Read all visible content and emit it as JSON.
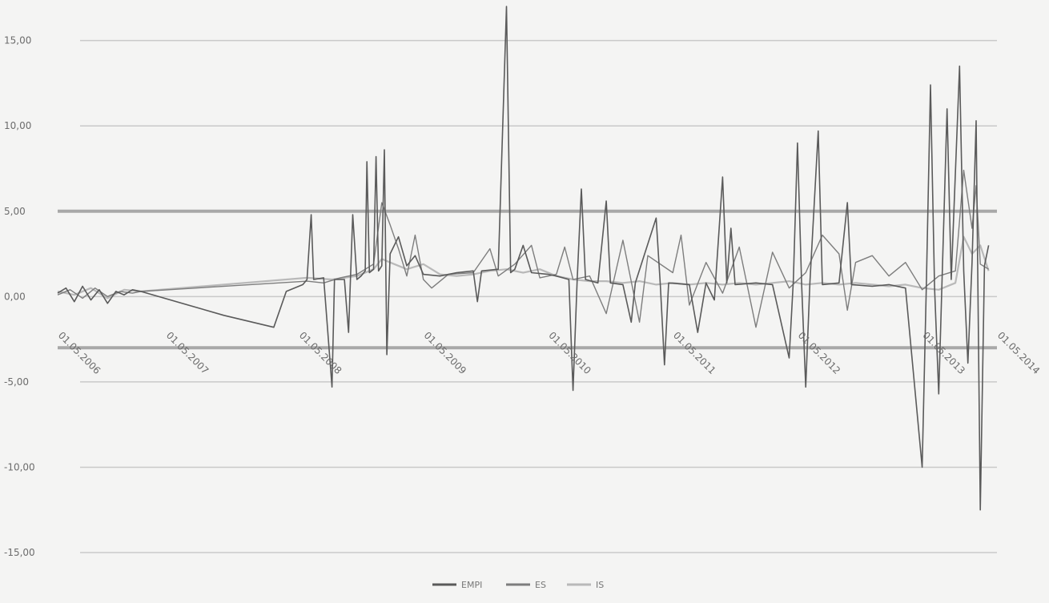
{
  "chart_data": {
    "type": "line",
    "title": "",
    "xlabel": "",
    "ylabel": "",
    "ylim": [
      -15,
      17
    ],
    "yticks": [
      15,
      10,
      5,
      0,
      -5,
      -10,
      -15
    ],
    "ytick_labels": [
      "15,00",
      "10,00",
      "5,00",
      "0,00",
      "-5,00",
      "-10,00",
      "-15,00"
    ],
    "xtick_labels": [
      "01.05.2006",
      "01.05.2007",
      "01.05.2008",
      "01.05.2009",
      "01.05.2010",
      "01.05.2011",
      "01.05.2012",
      "01.05.2013",
      "01.05.2014"
    ],
    "reference_lines": [
      5.0,
      -3.0
    ],
    "legend_position": "bottom",
    "grid": true,
    "colors": {
      "EMPI": "#5a5a5a",
      "ES": "#7d7d7d",
      "IS": "#b9b9b9",
      "reference": "#a8a8a8",
      "grid": "#c9c9c9"
    },
    "series": [
      {
        "name": "EMPI",
        "points": [
          [
            0,
            0.2
          ],
          [
            0.1,
            0.5
          ],
          [
            0.2,
            -0.3
          ],
          [
            0.3,
            0.6
          ],
          [
            0.4,
            -0.2
          ],
          [
            0.5,
            0.4
          ],
          [
            0.6,
            -0.4
          ],
          [
            0.7,
            0.3
          ],
          [
            0.8,
            0.1
          ],
          [
            0.9,
            0.4
          ],
          [
            1.0,
            0.3
          ],
          [
            2.0,
            -1.1
          ],
          [
            2.6,
            -1.8
          ],
          [
            2.75,
            0.3
          ],
          [
            2.95,
            0.7
          ],
          [
            3.0,
            1.0
          ],
          [
            3.05,
            4.8
          ],
          [
            3.08,
            1.0
          ],
          [
            3.2,
            1.1
          ],
          [
            3.3,
            -5.3
          ],
          [
            3.33,
            1.0
          ],
          [
            3.45,
            1.0
          ],
          [
            3.5,
            -2.1
          ],
          [
            3.55,
            4.8
          ],
          [
            3.6,
            1.0
          ],
          [
            3.65,
            1.2
          ],
          [
            3.7,
            1.5
          ],
          [
            3.72,
            7.9
          ],
          [
            3.75,
            1.4
          ],
          [
            3.8,
            1.6
          ],
          [
            3.83,
            8.2
          ],
          [
            3.86,
            1.5
          ],
          [
            3.9,
            1.8
          ],
          [
            3.93,
            8.6
          ],
          [
            3.96,
            -3.4
          ],
          [
            4.0,
            2.5
          ],
          [
            4.1,
            3.5
          ],
          [
            4.2,
            1.8
          ],
          [
            4.3,
            2.4
          ],
          [
            4.4,
            1.3
          ],
          [
            4.6,
            1.2
          ],
          [
            4.8,
            1.4
          ],
          [
            5.0,
            1.5
          ],
          [
            5.05,
            -0.3
          ],
          [
            5.1,
            1.5
          ],
          [
            5.3,
            1.6
          ],
          [
            5.4,
            17.0
          ],
          [
            5.45,
            1.4
          ],
          [
            5.5,
            1.6
          ],
          [
            5.6,
            3.0
          ],
          [
            5.7,
            1.4
          ],
          [
            5.9,
            1.3
          ],
          [
            6.0,
            1.2
          ],
          [
            6.15,
            1.0
          ],
          [
            6.2,
            -5.5
          ],
          [
            6.25,
            1.0
          ],
          [
            6.3,
            6.3
          ],
          [
            6.35,
            1.0
          ],
          [
            6.5,
            0.8
          ],
          [
            6.6,
            5.6
          ],
          [
            6.65,
            0.8
          ],
          [
            6.8,
            0.7
          ],
          [
            6.9,
            -1.5
          ],
          [
            6.95,
            0.8
          ],
          [
            7.2,
            4.6
          ],
          [
            7.25,
            0.7
          ],
          [
            7.3,
            -4.0
          ],
          [
            7.35,
            0.8
          ],
          [
            7.6,
            0.7
          ],
          [
            7.7,
            -2.1
          ],
          [
            7.8,
            0.8
          ],
          [
            7.9,
            -0.2
          ],
          [
            8.0,
            7.0
          ],
          [
            8.05,
            0.8
          ],
          [
            8.1,
            4.0
          ],
          [
            8.15,
            0.7
          ],
          [
            8.4,
            0.8
          ],
          [
            8.6,
            0.7
          ],
          [
            8.8,
            -3.6
          ],
          [
            8.85,
            0.9
          ],
          [
            8.9,
            9.0
          ],
          [
            8.95,
            0.7
          ],
          [
            9.0,
            -5.3
          ],
          [
            9.05,
            0.8
          ],
          [
            9.15,
            9.7
          ],
          [
            9.2,
            0.7
          ],
          [
            9.4,
            0.8
          ],
          [
            9.5,
            5.5
          ],
          [
            9.55,
            0.7
          ],
          [
            9.8,
            0.6
          ],
          [
            10.0,
            0.7
          ],
          [
            10.2,
            0.5
          ],
          [
            10.4,
            -10.0
          ],
          [
            10.45,
            0.6
          ],
          [
            10.5,
            12.4
          ],
          [
            10.55,
            0.5
          ],
          [
            10.6,
            -5.7
          ],
          [
            10.7,
            11.0
          ],
          [
            10.75,
            1.0
          ],
          [
            10.85,
            13.5
          ],
          [
            10.9,
            1.5
          ],
          [
            10.95,
            -3.9
          ],
          [
            11.0,
            2.0
          ],
          [
            11.05,
            10.3
          ],
          [
            11.1,
            -12.5
          ],
          [
            11.15,
            1.8
          ],
          [
            11.2,
            3.0
          ]
        ]
      },
      {
        "name": "ES",
        "points": [
          [
            0,
            0.1
          ],
          [
            0.15,
            0.4
          ],
          [
            0.3,
            -0.1
          ],
          [
            0.45,
            0.5
          ],
          [
            0.6,
            0.0
          ],
          [
            0.75,
            0.3
          ],
          [
            0.9,
            0.2
          ],
          [
            1.0,
            0.3
          ],
          [
            3.0,
            0.9
          ],
          [
            3.2,
            0.8
          ],
          [
            3.4,
            1.1
          ],
          [
            3.6,
            1.3
          ],
          [
            3.8,
            1.9
          ],
          [
            3.9,
            5.5
          ],
          [
            4.0,
            4.2
          ],
          [
            4.1,
            2.8
          ],
          [
            4.2,
            1.2
          ],
          [
            4.3,
            3.6
          ],
          [
            4.4,
            1.0
          ],
          [
            4.5,
            0.5
          ],
          [
            4.7,
            1.3
          ],
          [
            5.0,
            1.4
          ],
          [
            5.2,
            2.8
          ],
          [
            5.3,
            1.2
          ],
          [
            5.5,
            1.9
          ],
          [
            5.7,
            3.0
          ],
          [
            5.8,
            1.1
          ],
          [
            6.0,
            1.3
          ],
          [
            6.1,
            2.9
          ],
          [
            6.2,
            1.0
          ],
          [
            6.4,
            1.2
          ],
          [
            6.6,
            -1.0
          ],
          [
            6.8,
            3.3
          ],
          [
            7.0,
            -1.5
          ],
          [
            7.1,
            2.4
          ],
          [
            7.4,
            1.4
          ],
          [
            7.5,
            3.6
          ],
          [
            7.6,
            -0.5
          ],
          [
            7.8,
            2.0
          ],
          [
            8.0,
            0.2
          ],
          [
            8.2,
            2.9
          ],
          [
            8.4,
            -1.8
          ],
          [
            8.6,
            2.6
          ],
          [
            8.8,
            0.5
          ],
          [
            9.0,
            1.4
          ],
          [
            9.2,
            3.6
          ],
          [
            9.4,
            2.5
          ],
          [
            9.5,
            -0.8
          ],
          [
            9.6,
            2.0
          ],
          [
            9.8,
            2.4
          ],
          [
            10.0,
            1.2
          ],
          [
            10.2,
            2.0
          ],
          [
            10.4,
            0.4
          ],
          [
            10.6,
            1.2
          ],
          [
            10.8,
            1.5
          ],
          [
            10.9,
            7.4
          ],
          [
            11.0,
            4.0
          ],
          [
            11.05,
            6.5
          ],
          [
            11.1,
            1.9
          ],
          [
            11.2,
            1.6
          ]
        ]
      },
      {
        "name": "IS",
        "points": [
          [
            0,
            0.3
          ],
          [
            0.2,
            0.1
          ],
          [
            0.4,
            0.5
          ],
          [
            0.6,
            -0.1
          ],
          [
            0.8,
            0.4
          ],
          [
            1.0,
            0.3
          ],
          [
            3.0,
            1.1
          ],
          [
            3.3,
            1.0
          ],
          [
            3.6,
            1.2
          ],
          [
            3.8,
            1.6
          ],
          [
            3.9,
            2.2
          ],
          [
            4.0,
            2.0
          ],
          [
            4.2,
            1.6
          ],
          [
            4.4,
            1.9
          ],
          [
            4.6,
            1.3
          ],
          [
            4.8,
            1.2
          ],
          [
            5.0,
            1.3
          ],
          [
            5.2,
            1.5
          ],
          [
            5.4,
            1.6
          ],
          [
            5.6,
            1.4
          ],
          [
            5.8,
            1.6
          ],
          [
            6.0,
            1.2
          ],
          [
            6.2,
            1.0
          ],
          [
            6.4,
            0.9
          ],
          [
            6.6,
            0.9
          ],
          [
            6.8,
            0.8
          ],
          [
            7.0,
            0.9
          ],
          [
            7.2,
            0.7
          ],
          [
            7.4,
            0.8
          ],
          [
            7.6,
            0.7
          ],
          [
            7.8,
            0.8
          ],
          [
            8.0,
            0.7
          ],
          [
            8.2,
            0.8
          ],
          [
            8.4,
            0.7
          ],
          [
            8.6,
            0.8
          ],
          [
            8.8,
            0.9
          ],
          [
            9.0,
            0.7
          ],
          [
            9.2,
            0.8
          ],
          [
            9.4,
            0.7
          ],
          [
            9.6,
            0.8
          ],
          [
            9.8,
            0.7
          ],
          [
            10.0,
            0.6
          ],
          [
            10.2,
            0.7
          ],
          [
            10.4,
            0.5
          ],
          [
            10.6,
            0.4
          ],
          [
            10.8,
            0.8
          ],
          [
            10.9,
            3.5
          ],
          [
            11.0,
            2.5
          ],
          [
            11.1,
            3.0
          ],
          [
            11.2,
            1.5
          ]
        ]
      }
    ]
  }
}
